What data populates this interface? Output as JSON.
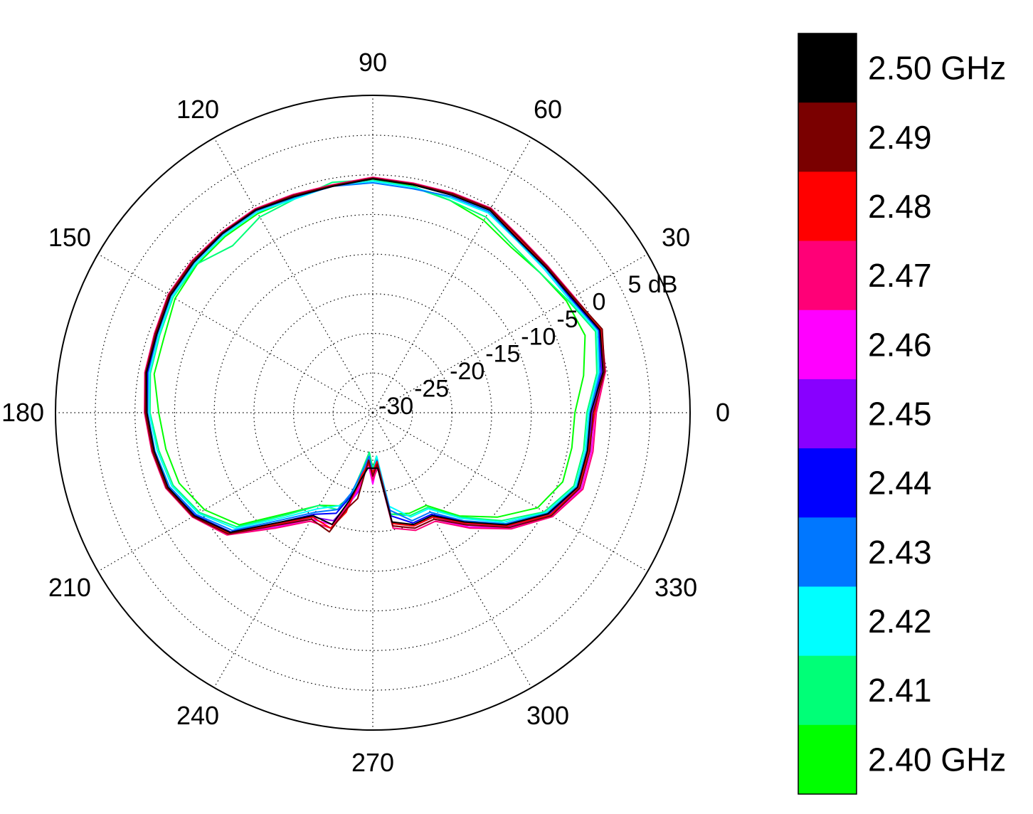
{
  "chart_data": {
    "type": "line",
    "coordinate_system": "polar",
    "title": "",
    "angle_unit": "degrees",
    "angle_ticks": [
      "0",
      "30",
      "60",
      "90",
      "120",
      "150",
      "180",
      "210",
      "240",
      "270",
      "300",
      "330"
    ],
    "radial_range": [
      -30,
      5
    ],
    "radial_unit": "dB",
    "radial_ticks": [
      {
        "value": -30,
        "label": "-30"
      },
      {
        "value": -25,
        "label": "-25"
      },
      {
        "value": -20,
        "label": "-20"
      },
      {
        "value": -15,
        "label": "-15"
      },
      {
        "value": -10,
        "label": "-10"
      },
      {
        "value": -5,
        "label": "-5"
      },
      {
        "value": 0,
        "label": "0"
      },
      {
        "value": 5,
        "label": "5 dB"
      }
    ],
    "grid": true,
    "legend": "colorbar-right",
    "colorbar": [
      {
        "label": "2.50 GHz",
        "color": "#000000"
      },
      {
        "label": "2.49",
        "color": "#7a0000"
      },
      {
        "label": "2.48",
        "color": "#ff0000"
      },
      {
        "label": "2.47",
        "color": "#ff0077"
      },
      {
        "label": "2.46",
        "color": "#ff00ff"
      },
      {
        "label": "2.45",
        "color": "#8800ff"
      },
      {
        "label": "2.44",
        "color": "#0000ff"
      },
      {
        "label": "2.43",
        "color": "#0077ff"
      },
      {
        "label": "2.42",
        "color": "#00ffff"
      },
      {
        "label": "2.41",
        "color": "#00ff77"
      },
      {
        "label": "2.40 GHz",
        "color": "#00ff00"
      }
    ],
    "angles": [
      0,
      10,
      20,
      30,
      40,
      50,
      60,
      70,
      80,
      90,
      100,
      110,
      120,
      130,
      140,
      150,
      160,
      170,
      180,
      190,
      200,
      210,
      220,
      230,
      240,
      250,
      255,
      260,
      265,
      270,
      275,
      280,
      290,
      300,
      310,
      320,
      330,
      340,
      350
    ],
    "series": [
      {
        "color": "#000000",
        "values": [
          -2.5,
          -0.5,
          0.5,
          -1.0,
          -1.5,
          -1.5,
          -0.5,
          -0.8,
          -0.8,
          -0.5,
          -1.0,
          -1.0,
          -0.5,
          -0.5,
          -0.5,
          -0.5,
          -1.0,
          -1.0,
          -1.5,
          -2.0,
          -2.5,
          -4.0,
          -6.5,
          -12.0,
          -15.0,
          -15.0,
          -18.5,
          -21.5,
          -23.0,
          -23.0,
          -23.0,
          -16.0,
          -15.0,
          -15.0,
          -12.0,
          -8.0,
          -4.5,
          -2.5,
          -2.5
        ]
      },
      {
        "color": "#7a0000",
        "values": [
          -2.2,
          -0.3,
          0.8,
          -0.8,
          -1.3,
          -1.2,
          -0.3,
          -0.6,
          -0.7,
          -0.4,
          -0.9,
          -0.8,
          -0.4,
          -0.4,
          -0.3,
          -0.3,
          -0.8,
          -0.9,
          -1.3,
          -1.8,
          -2.3,
          -3.8,
          -6.2,
          -11.5,
          -14.5,
          -14.0,
          -17.5,
          -19.0,
          -24.0,
          -22.0,
          -23.5,
          -15.5,
          -14.5,
          -14.5,
          -11.5,
          -7.5,
          -4.0,
          -2.2,
          -2.2
        ]
      },
      {
        "color": "#ff0000",
        "values": [
          -2.0,
          -0.5,
          0.6,
          -0.9,
          -1.4,
          -1.3,
          -0.4,
          -0.7,
          -0.8,
          -0.5,
          -1.0,
          -0.9,
          -0.5,
          -0.5,
          -0.4,
          -0.3,
          -0.9,
          -1.0,
          -1.4,
          -1.9,
          -2.4,
          -3.9,
          -6.3,
          -11.8,
          -14.8,
          -14.5,
          -17.0,
          -22.0,
          -23.5,
          -22.5,
          -23.8,
          -15.8,
          -14.8,
          -14.8,
          -11.8,
          -7.8,
          -4.2,
          -2.3,
          -2.4
        ]
      },
      {
        "color": "#ff0077",
        "values": [
          -1.8,
          -0.2,
          0.7,
          -0.7,
          -1.2,
          -1.1,
          -0.2,
          -0.5,
          -0.6,
          -0.3,
          -0.8,
          -0.7,
          -0.3,
          -0.3,
          -0.2,
          -0.2,
          -0.7,
          -0.8,
          -1.2,
          -1.7,
          -2.2,
          -3.7,
          -6.0,
          -11.0,
          -14.2,
          -14.5,
          -18.0,
          -21.0,
          -24.0,
          -21.5,
          -23.0,
          -15.2,
          -14.2,
          -14.2,
          -11.0,
          -7.2,
          -3.8,
          -1.8,
          -1.8
        ]
      },
      {
        "color": "#ff00ff",
        "values": [
          -2.0,
          -0.4,
          0.7,
          -0.8,
          -1.3,
          -1.2,
          -0.3,
          -0.6,
          -0.7,
          -0.4,
          -0.9,
          -0.8,
          -0.4,
          -0.4,
          -0.3,
          -0.3,
          -0.8,
          -0.9,
          -1.3,
          -1.8,
          -2.3,
          -3.8,
          -6.1,
          -11.2,
          -14.5,
          -15.0,
          -17.5,
          -20.5,
          -23.5,
          -21.0,
          -23.5,
          -15.5,
          -14.5,
          -14.5,
          -11.2,
          -7.4,
          -4.0,
          -2.0,
          -2.0
        ]
      },
      {
        "color": "#8800ff",
        "values": [
          -2.3,
          -0.6,
          0.5,
          -1.0,
          -1.4,
          -1.3,
          -0.4,
          -0.7,
          -0.8,
          -0.4,
          -0.9,
          -0.9,
          -0.5,
          -0.4,
          -0.4,
          -0.4,
          -0.9,
          -1.0,
          -1.4,
          -1.9,
          -2.4,
          -4.0,
          -6.4,
          -11.6,
          -14.8,
          -15.5,
          -18.0,
          -20.0,
          -23.8,
          -21.5,
          -23.2,
          -16.0,
          -14.8,
          -14.8,
          -11.6,
          -7.7,
          -4.2,
          -2.3,
          -2.3
        ]
      },
      {
        "color": "#0000ff",
        "values": [
          -2.4,
          -0.7,
          0.4,
          -1.1,
          -1.5,
          -1.4,
          -0.5,
          -0.8,
          -0.8,
          -0.5,
          -1.0,
          -1.0,
          -0.5,
          -0.5,
          -0.5,
          -0.5,
          -1.0,
          -1.1,
          -1.5,
          -2.0,
          -2.5,
          -4.1,
          -6.6,
          -12.0,
          -15.2,
          -16.5,
          -19.0,
          -21.0,
          -24.0,
          -22.0,
          -23.5,
          -16.8,
          -15.2,
          -15.2,
          -12.0,
          -8.0,
          -4.4,
          -2.4,
          -2.4
        ]
      },
      {
        "color": "#0077ff",
        "values": [
          -2.6,
          -0.9,
          0.3,
          -1.2,
          -1.6,
          -1.6,
          -0.7,
          -1.0,
          -1.3,
          -1.0,
          -1.0,
          -1.1,
          -0.6,
          -0.6,
          -0.6,
          -0.6,
          -1.1,
          -1.2,
          -1.6,
          -2.1,
          -2.7,
          -4.3,
          -6.9,
          -12.4,
          -15.5,
          -17.0,
          -19.5,
          -22.5,
          -24.5,
          -22.5,
          -24.0,
          -17.5,
          -15.5,
          -15.5,
          -12.2,
          -8.2,
          -4.6,
          -2.6,
          -2.6
        ]
      },
      {
        "color": "#00ffff",
        "values": [
          -2.8,
          -1.1,
          0.1,
          -1.4,
          -1.8,
          -1.7,
          -0.9,
          -1.2,
          -1.1,
          -0.8,
          -0.9,
          -1.3,
          -0.8,
          -0.8,
          -0.8,
          -0.8,
          -1.3,
          -1.4,
          -1.8,
          -2.4,
          -3.0,
          -4.6,
          -7.3,
          -12.8,
          -16.0,
          -17.5,
          -18.5,
          -22.0,
          -24.5,
          -22.0,
          -24.5,
          -18.0,
          -16.0,
          -16.0,
          -12.6,
          -8.5,
          -4.8,
          -2.8,
          -2.8
        ]
      },
      {
        "color": "#00ff77",
        "values": [
          -3.0,
          -1.3,
          -0.1,
          -1.6,
          -2.5,
          -2.5,
          -1.5,
          -1.5,
          -1.1,
          -0.6,
          -0.5,
          -1.3,
          -1.5,
          -2.5,
          -0.9,
          -0.9,
          -1.4,
          -1.5,
          -1.9,
          -2.6,
          -3.2,
          -4.8,
          -7.6,
          -13.2,
          -16.5,
          -17.0,
          -19.0,
          -23.0,
          -25.0,
          -23.0,
          -24.5,
          -17.0,
          -16.2,
          -16.2,
          -12.8,
          -8.8,
          -5.0,
          -3.0,
          -3.0
        ]
      },
      {
        "color": "#00ff00",
        "values": [
          -4.5,
          -3.0,
          -1.5,
          -1.8,
          -2.5,
          -2.8,
          -2.0,
          -1.5,
          -1.0,
          -0.6,
          -0.8,
          -1.2,
          -1.0,
          -1.0,
          -1.0,
          -1.2,
          -2.0,
          -2.0,
          -3.0,
          -3.5,
          -4.0,
          -5.5,
          -8.0,
          -13.5,
          -16.5,
          -17.5,
          -19.0,
          -22.5,
          -24.0,
          -22.5,
          -24.0,
          -17.0,
          -16.5,
          -16.5,
          -13.0,
          -9.5,
          -6.0,
          -4.5,
          -4.5
        ]
      }
    ]
  }
}
